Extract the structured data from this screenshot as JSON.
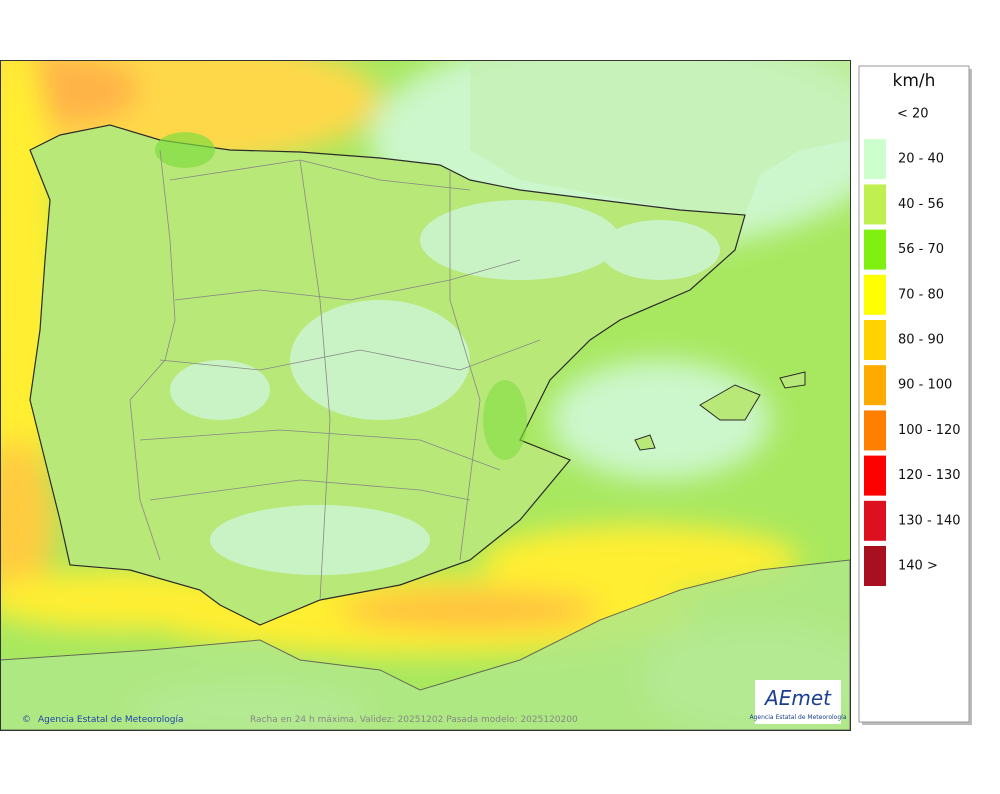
{
  "legend": {
    "title": "km/h",
    "items": [
      {
        "label": "< 20"
      },
      {
        "label": "20 - 40",
        "color": "#ccffcc"
      },
      {
        "label": "40 - 56",
        "color": "#c0f050"
      },
      {
        "label": "56 - 70",
        "color": "#80f010"
      },
      {
        "label": "70 - 80",
        "color": "#ffff00"
      },
      {
        "label": "80 - 90",
        "color": "#ffd200"
      },
      {
        "label": "90 - 100",
        "color": "#ffaa00"
      },
      {
        "label": "100 - 120",
        "color": "#ff8000"
      },
      {
        "label": "120 - 130",
        "color": "#ff0000"
      },
      {
        "label": "130 - 140",
        "color": "#dd1020"
      },
      {
        "label": "140 >",
        "color": "#a81020"
      }
    ]
  },
  "footer": {
    "credit": "Agencia Estatal de Meteorología",
    "caption": "Racha en 24 h máxima. Validez: 20251202 Pasada modelo: 2025120200"
  },
  "logo": {
    "name": "AEmet",
    "subtitle": "Agencia Estatal de Meteorología"
  }
}
